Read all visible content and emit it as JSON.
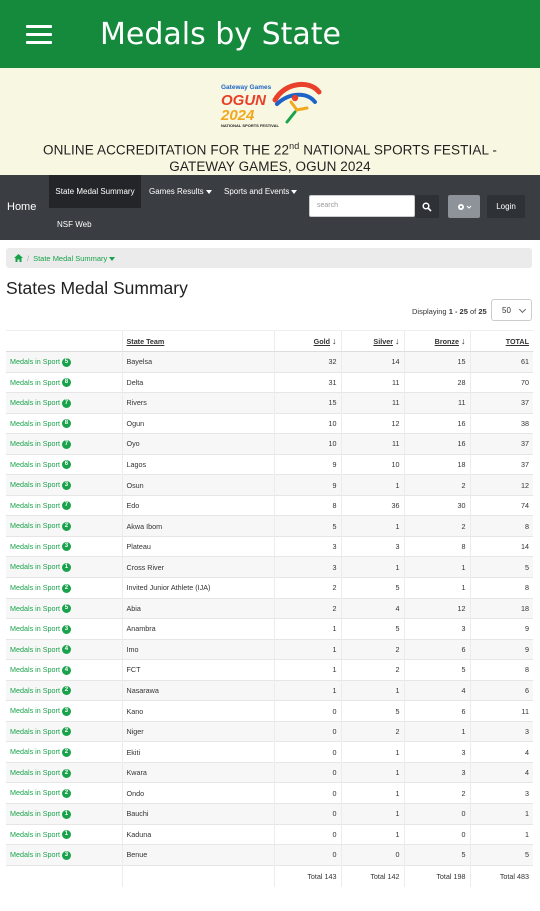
{
  "appbar": {
    "title": "Medals by State"
  },
  "banner": {
    "logo_top": "Gateway Games",
    "logo_main": "OGUN",
    "logo_year": "2024",
    "logo_sub": "NATIONAL SPORTS FESTIVAL",
    "title_pre": "ONLINE ACCREDITATION FOR THE 22",
    "title_sup": "nd",
    "title_post": " NATIONAL SPORTS FESTIAL - GATEWAY GAMES, OGUN 2024"
  },
  "nav": {
    "home": "Home",
    "items": [
      "State Medal Summary",
      "Games Results",
      "Sports and Events",
      "NSF Web"
    ],
    "search_placeholder": "search",
    "login": "Login"
  },
  "breadcrumb": {
    "current": "State Medal Summary"
  },
  "page": {
    "title": "States Medal Summary",
    "displaying_pre": "Displaying ",
    "displaying_range": "1 - 25",
    "displaying_of": " of ",
    "displaying_total": "25",
    "page_size": "50"
  },
  "table": {
    "headers": {
      "state": "State Team",
      "gold": "Gold",
      "silver": "Silver",
      "bronze": "Bronze",
      "total": "TOTAL"
    },
    "link_label": "Medals in Sport",
    "rows": [
      {
        "sports": "5",
        "state": "Bayelsa",
        "gold": "32",
        "silver": "14",
        "bronze": "15",
        "total": "61"
      },
      {
        "sports": "8",
        "state": "Delta",
        "gold": "31",
        "silver": "11",
        "bronze": "28",
        "total": "70"
      },
      {
        "sports": "7",
        "state": "Rivers",
        "gold": "15",
        "silver": "11",
        "bronze": "11",
        "total": "37"
      },
      {
        "sports": "8",
        "state": "Ogun",
        "gold": "10",
        "silver": "12",
        "bronze": "16",
        "total": "38"
      },
      {
        "sports": "7",
        "state": "Oyo",
        "gold": "10",
        "silver": "11",
        "bronze": "16",
        "total": "37"
      },
      {
        "sports": "6",
        "state": "Lagos",
        "gold": "9",
        "silver": "10",
        "bronze": "18",
        "total": "37"
      },
      {
        "sports": "3",
        "state": "Osun",
        "gold": "9",
        "silver": "1",
        "bronze": "2",
        "total": "12"
      },
      {
        "sports": "7",
        "state": "Edo",
        "gold": "8",
        "silver": "36",
        "bronze": "30",
        "total": "74"
      },
      {
        "sports": "2",
        "state": "Akwa Ibom",
        "gold": "5",
        "silver": "1",
        "bronze": "2",
        "total": "8"
      },
      {
        "sports": "3",
        "state": "Plateau",
        "gold": "3",
        "silver": "3",
        "bronze": "8",
        "total": "14"
      },
      {
        "sports": "1",
        "state": "Cross River",
        "gold": "3",
        "silver": "1",
        "bronze": "1",
        "total": "5"
      },
      {
        "sports": "2",
        "state": "Invited Junior Athlete (IJA)",
        "gold": "2",
        "silver": "5",
        "bronze": "1",
        "total": "8"
      },
      {
        "sports": "5",
        "state": "Abia",
        "gold": "2",
        "silver": "4",
        "bronze": "12",
        "total": "18"
      },
      {
        "sports": "3",
        "state": "Anambra",
        "gold": "1",
        "silver": "5",
        "bronze": "3",
        "total": "9"
      },
      {
        "sports": "4",
        "state": "Imo",
        "gold": "1",
        "silver": "2",
        "bronze": "6",
        "total": "9"
      },
      {
        "sports": "4",
        "state": "FCT",
        "gold": "1",
        "silver": "2",
        "bronze": "5",
        "total": "8"
      },
      {
        "sports": "2",
        "state": "Nasarawa",
        "gold": "1",
        "silver": "1",
        "bronze": "4",
        "total": "6"
      },
      {
        "sports": "3",
        "state": "Kano",
        "gold": "0",
        "silver": "5",
        "bronze": "6",
        "total": "11"
      },
      {
        "sports": "2",
        "state": "Niger",
        "gold": "0",
        "silver": "2",
        "bronze": "1",
        "total": "3"
      },
      {
        "sports": "2",
        "state": "Ekiti",
        "gold": "0",
        "silver": "1",
        "bronze": "3",
        "total": "4"
      },
      {
        "sports": "2",
        "state": "Kwara",
        "gold": "0",
        "silver": "1",
        "bronze": "3",
        "total": "4"
      },
      {
        "sports": "2",
        "state": "Ondo",
        "gold": "0",
        "silver": "1",
        "bronze": "2",
        "total": "3"
      },
      {
        "sports": "1",
        "state": "Bauchi",
        "gold": "0",
        "silver": "1",
        "bronze": "0",
        "total": "1"
      },
      {
        "sports": "1",
        "state": "Kaduna",
        "gold": "0",
        "silver": "1",
        "bronze": "0",
        "total": "1"
      },
      {
        "sports": "3",
        "state": "Benue",
        "gold": "0",
        "silver": "0",
        "bronze": "5",
        "total": "5"
      }
    ],
    "footer": {
      "gold": "Total 143",
      "silver": "Total 142",
      "bronze": "Total 198",
      "total": "Total 483"
    }
  },
  "colors": {
    "appbar": "#158a3c",
    "banner": "#f8f8e2",
    "nav": "#3a3d42",
    "accent": "#18a34a"
  },
  "icons": [
    "menu-icon",
    "home-icon",
    "search-icon",
    "gear-icon",
    "sort-arrow-icon"
  ]
}
